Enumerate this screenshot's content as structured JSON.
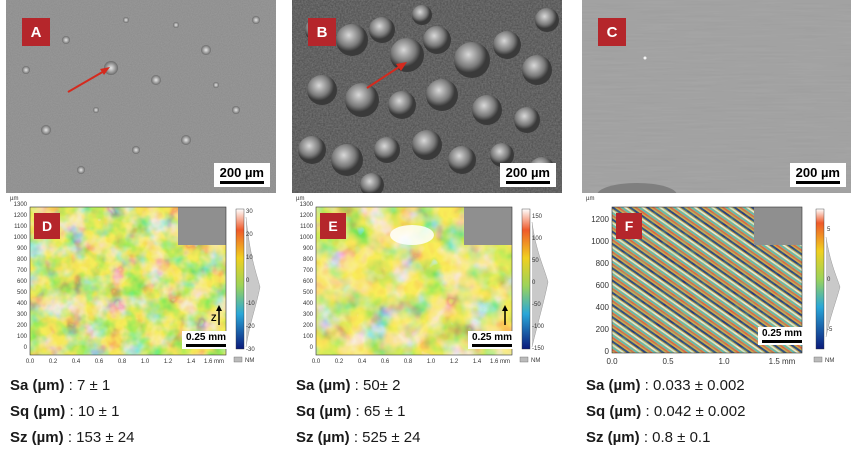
{
  "panels": [
    {
      "label": "A",
      "scale": "200 µm",
      "map_label": "D",
      "map_scale": "0.25 mm",
      "y_ticks": [
        "1300",
        "1200",
        "1100",
        "1000",
        "900",
        "800",
        "700",
        "600",
        "500",
        "400",
        "300",
        "200",
        "100",
        "0"
      ],
      "x_ticks": [
        "0.0",
        "0.2",
        "0.4",
        "0.6",
        "0.8",
        "1.0",
        "1.2",
        "1.4",
        "1.6 mm"
      ],
      "cb_ticks": [
        "30",
        "20",
        "10",
        "0",
        "-10",
        "-20",
        "-30"
      ],
      "axis_unit": "µm",
      "cb_unit": "NM",
      "arrow_label": "Z",
      "stats": [
        {
          "key": "Sa (µm)",
          "value": " : 7 ± 1"
        },
        {
          "key": "Sq (µm)",
          "value": " : 10 ± 1"
        },
        {
          "key": "Sz (µm)",
          "value": " : 153 ± 24"
        }
      ]
    },
    {
      "label": "B",
      "scale": "200 µm",
      "map_label": "E",
      "map_scale": "0.25 mm",
      "y_ticks": [
        "1300",
        "1200",
        "1100",
        "1000",
        "900",
        "800",
        "700",
        "600",
        "500",
        "400",
        "300",
        "200",
        "100",
        "0"
      ],
      "x_ticks": [
        "0.0",
        "0.2",
        "0.4",
        "0.6",
        "0.8",
        "1.0",
        "1.2",
        "1.4",
        "1.6 mm"
      ],
      "cb_ticks": [
        "150",
        "100",
        "50",
        "0",
        "-50",
        "-100",
        "-150"
      ],
      "axis_unit": "µm",
      "cb_unit": "NM",
      "arrow_label": "",
      "stats": [
        {
          "key": "Sa (µm)",
          "value": " : 50± 2"
        },
        {
          "key": "Sq (µm)",
          "value": " : 65 ± 1"
        },
        {
          "key": "Sz (µm)",
          "value": " : 525 ± 24"
        }
      ]
    },
    {
      "label": "C",
      "scale": "200 µm",
      "map_label": "F",
      "map_scale": "0.25 mm",
      "y_ticks": [
        "1200",
        "1000",
        "800",
        "600",
        "400",
        "200",
        "0"
      ],
      "x_ticks": [
        "0.0",
        "0.5",
        "1.0",
        "1.5 mm"
      ],
      "cb_ticks": [
        "5",
        "0",
        "-5"
      ],
      "axis_unit": "µm",
      "cb_unit": "NM",
      "arrow_label": "",
      "stats": [
        {
          "key": "Sa (µm)",
          "value": " : 0.033 ± 0.002"
        },
        {
          "key": "Sq (µm)",
          "value": " : 0.042 ± 0.002"
        },
        {
          "key": "Sz (µm)",
          "value": " : 0.8 ± 0.1"
        }
      ]
    }
  ],
  "colors": {
    "badge": "#b5262b",
    "arrow": "#d42a1e"
  }
}
